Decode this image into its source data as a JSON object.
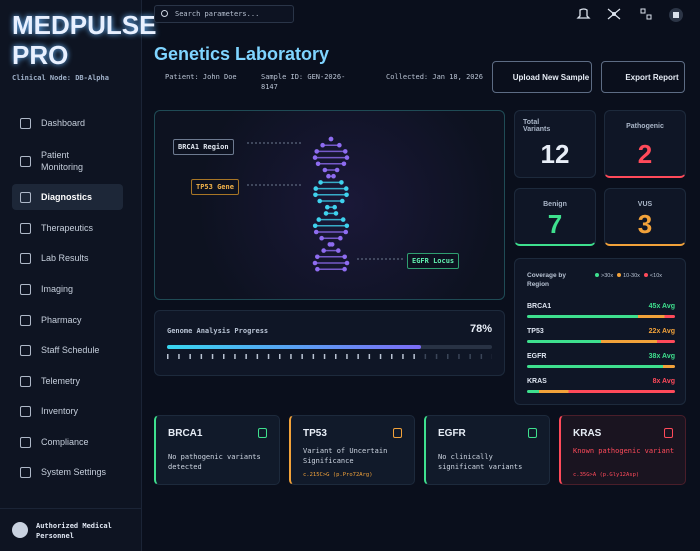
{
  "sidebar": {
    "brand": "MEDPULSE PRO",
    "node": "Clinical Node: DB-Alpha",
    "nav": [
      "Dashboard",
      "Patient Monitoring",
      "Diagnostics",
      "Therapeutics",
      "Lab Results",
      "Imaging",
      "Pharmacy",
      "Staff Schedule",
      "Telemetry",
      "Inventory",
      "Compliance",
      "System Settings"
    ],
    "user": "Authorized Medical Personnel"
  },
  "topbar": {
    "search": "Search parameters..."
  },
  "header": {
    "title": "Genetics Laboratory",
    "patient": "Patient: John Doe",
    "sample": "Sample ID: GEN-2026-8147",
    "collected": "Collected: Jan 18, 2026",
    "upload": "Upload New Sample",
    "export": "Export Report"
  },
  "dna": {
    "labels": [
      "BRCA1 Region",
      "TP53 Gene",
      "EGFR Locus"
    ]
  },
  "progress": {
    "label": "Genome Analysis Progress",
    "value": 78,
    "value_label": "78%"
  },
  "stats": [
    {
      "label": "Total Variants",
      "value": 12
    },
    {
      "label": "Pathogenic",
      "value": 2
    },
    {
      "label": "Benign",
      "value": 7
    },
    {
      "label": "VUS",
      "value": 3
    }
  ],
  "coverage": {
    "title": "Coverage by Region",
    "legend": [
      ">30x",
      "10-30x",
      "<10x"
    ],
    "rows": [
      {
        "gene": "BRCA1",
        "avg": "45x Avg"
      },
      {
        "gene": "TP53",
        "avg": "22x Avg"
      },
      {
        "gene": "EGFR",
        "avg": "38x Avg"
      },
      {
        "gene": "KRAS",
        "avg": "8x Avg"
      }
    ]
  },
  "cards": [
    {
      "gene": "BRCA1",
      "desc": "No pathogenic variants detected"
    },
    {
      "gene": "TP53",
      "desc": "Variant of Uncertain Significance",
      "note": "c.215C>G (p.Pro72Arg)"
    },
    {
      "gene": "EGFR",
      "desc": "No clinically significant variants"
    },
    {
      "gene": "KRAS",
      "desc": "Known pathogenic variant",
      "note": "c.35G>A (p.Gly12Asp)"
    }
  ]
}
